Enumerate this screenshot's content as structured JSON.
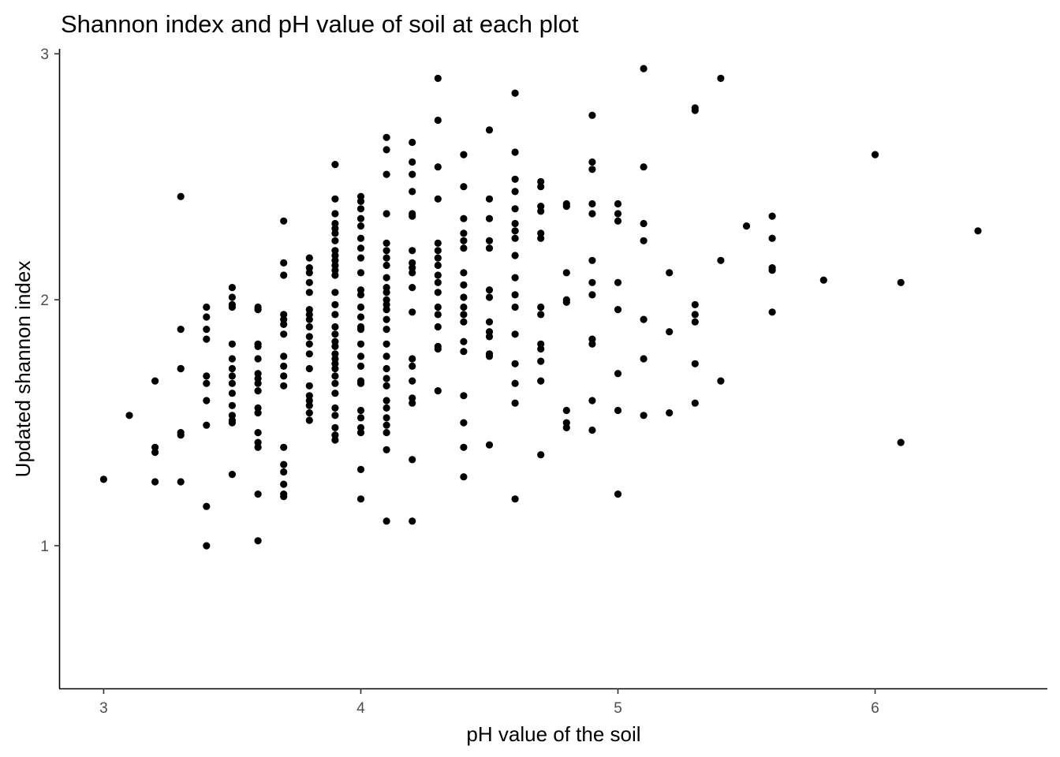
{
  "chart_data": {
    "type": "scatter",
    "title": "Shannon index and pH value of soil at each plot",
    "xlabel": "pH value of the soil",
    "ylabel": "Updated shannon index",
    "xlim": [
      2.83,
      6.67
    ],
    "ylim": [
      0.42,
      3.02
    ],
    "xticks": [
      3,
      4,
      5,
      6
    ],
    "yticks": [
      1,
      2,
      3
    ],
    "grid": false,
    "legend": "none",
    "point_color": "#000000",
    "points": [
      [
        3.0,
        1.27
      ],
      [
        3.1,
        1.53
      ],
      [
        3.2,
        1.67
      ],
      [
        3.2,
        1.4
      ],
      [
        3.2,
        1.38
      ],
      [
        3.2,
        1.26
      ],
      [
        3.3,
        2.42
      ],
      [
        3.3,
        1.88
      ],
      [
        3.3,
        1.72
      ],
      [
        3.3,
        1.72
      ],
      [
        3.3,
        1.46
      ],
      [
        3.3,
        1.45
      ],
      [
        3.3,
        1.26
      ],
      [
        3.4,
        1.97
      ],
      [
        3.4,
        1.93
      ],
      [
        3.4,
        1.88
      ],
      [
        3.4,
        1.84
      ],
      [
        3.4,
        1.69
      ],
      [
        3.4,
        1.66
      ],
      [
        3.4,
        1.59
      ],
      [
        3.4,
        1.49
      ],
      [
        3.4,
        1.16
      ],
      [
        3.4,
        1.0
      ],
      [
        3.5,
        2.05
      ],
      [
        3.5,
        2.01
      ],
      [
        3.5,
        1.98
      ],
      [
        3.5,
        1.97
      ],
      [
        3.5,
        1.82
      ],
      [
        3.5,
        1.76
      ],
      [
        3.5,
        1.72
      ],
      [
        3.5,
        1.69
      ],
      [
        3.5,
        1.66
      ],
      [
        3.5,
        1.62
      ],
      [
        3.5,
        1.57
      ],
      [
        3.5,
        1.53
      ],
      [
        3.5,
        1.51
      ],
      [
        3.5,
        1.5
      ],
      [
        3.5,
        1.29
      ],
      [
        3.6,
        1.97
      ],
      [
        3.6,
        1.96
      ],
      [
        3.6,
        1.82
      ],
      [
        3.6,
        1.81
      ],
      [
        3.6,
        1.76
      ],
      [
        3.6,
        1.7
      ],
      [
        3.6,
        1.68
      ],
      [
        3.6,
        1.66
      ],
      [
        3.6,
        1.63
      ],
      [
        3.6,
        1.56
      ],
      [
        3.6,
        1.54
      ],
      [
        3.6,
        1.46
      ],
      [
        3.6,
        1.42
      ],
      [
        3.6,
        1.4
      ],
      [
        3.6,
        1.21
      ],
      [
        3.6,
        1.02
      ],
      [
        3.7,
        2.32
      ],
      [
        3.7,
        2.15
      ],
      [
        3.7,
        2.1
      ],
      [
        3.7,
        1.94
      ],
      [
        3.7,
        1.92
      ],
      [
        3.7,
        1.9
      ],
      [
        3.7,
        1.86
      ],
      [
        3.7,
        1.77
      ],
      [
        3.7,
        1.73
      ],
      [
        3.7,
        1.69
      ],
      [
        3.7,
        1.65
      ],
      [
        3.7,
        1.4
      ],
      [
        3.7,
        1.33
      ],
      [
        3.7,
        1.3
      ],
      [
        3.7,
        1.25
      ],
      [
        3.7,
        1.21
      ],
      [
        3.7,
        1.2
      ],
      [
        3.8,
        2.17
      ],
      [
        3.8,
        2.13
      ],
      [
        3.8,
        2.11
      ],
      [
        3.8,
        2.07
      ],
      [
        3.8,
        2.03
      ],
      [
        3.8,
        1.96
      ],
      [
        3.8,
        1.94
      ],
      [
        3.8,
        1.92
      ],
      [
        3.8,
        1.89
      ],
      [
        3.8,
        1.85
      ],
      [
        3.8,
        1.82
      ],
      [
        3.8,
        1.78
      ],
      [
        3.8,
        1.72
      ],
      [
        3.8,
        1.65
      ],
      [
        3.8,
        1.61
      ],
      [
        3.8,
        1.59
      ],
      [
        3.8,
        1.57
      ],
      [
        3.8,
        1.54
      ],
      [
        3.8,
        1.51
      ],
      [
        3.9,
        2.55
      ],
      [
        3.9,
        2.41
      ],
      [
        3.9,
        2.35
      ],
      [
        3.9,
        2.31
      ],
      [
        3.9,
        2.29
      ],
      [
        3.9,
        2.27
      ],
      [
        3.9,
        2.24
      ],
      [
        3.9,
        2.2
      ],
      [
        3.9,
        2.18
      ],
      [
        3.9,
        2.16
      ],
      [
        3.9,
        2.14
      ],
      [
        3.9,
        2.12
      ],
      [
        3.9,
        2.1
      ],
      [
        3.9,
        2.03
      ],
      [
        3.9,
        1.98
      ],
      [
        3.9,
        1.94
      ],
      [
        3.9,
        1.89
      ],
      [
        3.9,
        1.86
      ],
      [
        3.9,
        1.83
      ],
      [
        3.9,
        1.81
      ],
      [
        3.9,
        1.78
      ],
      [
        3.9,
        1.76
      ],
      [
        3.9,
        1.74
      ],
      [
        3.9,
        1.72
      ],
      [
        3.9,
        1.69
      ],
      [
        3.9,
        1.66
      ],
      [
        3.9,
        1.62
      ],
      [
        3.9,
        1.56
      ],
      [
        3.9,
        1.53
      ],
      [
        3.9,
        1.48
      ],
      [
        3.9,
        1.45
      ],
      [
        3.9,
        1.43
      ],
      [
        4.0,
        2.42
      ],
      [
        4.0,
        2.4
      ],
      [
        4.0,
        2.37
      ],
      [
        4.0,
        2.33
      ],
      [
        4.0,
        2.3
      ],
      [
        4.0,
        2.25
      ],
      [
        4.0,
        2.21
      ],
      [
        4.0,
        2.17
      ],
      [
        4.0,
        2.11
      ],
      [
        4.0,
        2.04
      ],
      [
        4.0,
        2.02
      ],
      [
        4.0,
        1.97
      ],
      [
        4.0,
        1.93
      ],
      [
        4.0,
        1.89
      ],
      [
        4.0,
        1.88
      ],
      [
        4.0,
        1.82
      ],
      [
        4.0,
        1.77
      ],
      [
        4.0,
        1.73
      ],
      [
        4.0,
        1.67
      ],
      [
        4.0,
        1.66
      ],
      [
        4.0,
        1.55
      ],
      [
        4.0,
        1.52
      ],
      [
        4.0,
        1.48
      ],
      [
        4.0,
        1.46
      ],
      [
        4.0,
        1.31
      ],
      [
        4.0,
        1.19
      ],
      [
        4.1,
        2.66
      ],
      [
        4.1,
        2.61
      ],
      [
        4.1,
        2.51
      ],
      [
        4.1,
        2.35
      ],
      [
        4.1,
        2.23
      ],
      [
        4.1,
        2.2
      ],
      [
        4.1,
        2.17
      ],
      [
        4.1,
        2.14
      ],
      [
        4.1,
        2.09
      ],
      [
        4.1,
        2.05
      ],
      [
        4.1,
        2.03
      ],
      [
        4.1,
        2.0
      ],
      [
        4.1,
        1.98
      ],
      [
        4.1,
        1.96
      ],
      [
        4.1,
        1.92
      ],
      [
        4.1,
        1.88
      ],
      [
        4.1,
        1.82
      ],
      [
        4.1,
        1.77
      ],
      [
        4.1,
        1.72
      ],
      [
        4.1,
        1.68
      ],
      [
        4.1,
        1.65
      ],
      [
        4.1,
        1.59
      ],
      [
        4.1,
        1.56
      ],
      [
        4.1,
        1.52
      ],
      [
        4.1,
        1.49
      ],
      [
        4.1,
        1.46
      ],
      [
        4.1,
        1.39
      ],
      [
        4.1,
        1.1
      ],
      [
        4.2,
        2.64
      ],
      [
        4.2,
        2.56
      ],
      [
        4.2,
        2.51
      ],
      [
        4.2,
        2.44
      ],
      [
        4.2,
        2.35
      ],
      [
        4.2,
        2.34
      ],
      [
        4.2,
        2.2
      ],
      [
        4.2,
        2.15
      ],
      [
        4.2,
        2.13
      ],
      [
        4.2,
        2.11
      ],
      [
        4.2,
        2.05
      ],
      [
        4.2,
        1.95
      ],
      [
        4.2,
        1.76
      ],
      [
        4.2,
        1.73
      ],
      [
        4.2,
        1.67
      ],
      [
        4.2,
        1.6
      ],
      [
        4.2,
        1.58
      ],
      [
        4.2,
        1.35
      ],
      [
        4.2,
        1.1
      ],
      [
        4.3,
        2.9
      ],
      [
        4.3,
        2.73
      ],
      [
        4.3,
        2.54
      ],
      [
        4.3,
        2.41
      ],
      [
        4.3,
        2.23
      ],
      [
        4.3,
        2.2
      ],
      [
        4.3,
        2.17
      ],
      [
        4.3,
        2.14
      ],
      [
        4.3,
        2.1
      ],
      [
        4.3,
        2.07
      ],
      [
        4.3,
        2.03
      ],
      [
        4.3,
        1.97
      ],
      [
        4.3,
        1.94
      ],
      [
        4.3,
        1.89
      ],
      [
        4.3,
        1.81
      ],
      [
        4.3,
        1.8
      ],
      [
        4.3,
        1.63
      ],
      [
        4.4,
        2.59
      ],
      [
        4.4,
        2.46
      ],
      [
        4.4,
        2.33
      ],
      [
        4.4,
        2.27
      ],
      [
        4.4,
        2.24
      ],
      [
        4.4,
        2.21
      ],
      [
        4.4,
        2.11
      ],
      [
        4.4,
        2.06
      ],
      [
        4.4,
        2.01
      ],
      [
        4.4,
        1.97
      ],
      [
        4.4,
        1.94
      ],
      [
        4.4,
        1.91
      ],
      [
        4.4,
        1.83
      ],
      [
        4.4,
        1.79
      ],
      [
        4.4,
        1.61
      ],
      [
        4.4,
        1.5
      ],
      [
        4.4,
        1.4
      ],
      [
        4.4,
        1.28
      ],
      [
        4.5,
        2.69
      ],
      [
        4.5,
        2.41
      ],
      [
        4.5,
        2.33
      ],
      [
        4.5,
        2.24
      ],
      [
        4.5,
        2.21
      ],
      [
        4.5,
        2.04
      ],
      [
        4.5,
        2.01
      ],
      [
        4.5,
        1.91
      ],
      [
        4.5,
        1.87
      ],
      [
        4.5,
        1.85
      ],
      [
        4.5,
        1.78
      ],
      [
        4.5,
        1.77
      ],
      [
        4.5,
        1.41
      ],
      [
        4.6,
        2.84
      ],
      [
        4.6,
        2.6
      ],
      [
        4.6,
        2.49
      ],
      [
        4.6,
        2.44
      ],
      [
        4.6,
        2.37
      ],
      [
        4.6,
        2.31
      ],
      [
        4.6,
        2.28
      ],
      [
        4.6,
        2.25
      ],
      [
        4.6,
        2.18
      ],
      [
        4.6,
        2.09
      ],
      [
        4.6,
        2.02
      ],
      [
        4.6,
        1.97
      ],
      [
        4.6,
        1.86
      ],
      [
        4.6,
        1.74
      ],
      [
        4.6,
        1.66
      ],
      [
        4.6,
        1.58
      ],
      [
        4.6,
        1.19
      ],
      [
        4.7,
        2.48
      ],
      [
        4.7,
        2.46
      ],
      [
        4.7,
        2.38
      ],
      [
        4.7,
        2.36
      ],
      [
        4.7,
        2.27
      ],
      [
        4.7,
        2.25
      ],
      [
        4.7,
        1.97
      ],
      [
        4.7,
        1.94
      ],
      [
        4.7,
        1.82
      ],
      [
        4.7,
        1.8
      ],
      [
        4.7,
        1.75
      ],
      [
        4.7,
        1.67
      ],
      [
        4.7,
        1.37
      ],
      [
        4.8,
        2.39
      ],
      [
        4.8,
        2.38
      ],
      [
        4.8,
        2.11
      ],
      [
        4.8,
        2.0
      ],
      [
        4.8,
        1.99
      ],
      [
        4.8,
        1.55
      ],
      [
        4.8,
        1.5
      ],
      [
        4.8,
        1.48
      ],
      [
        4.9,
        2.75
      ],
      [
        4.9,
        2.56
      ],
      [
        4.9,
        2.53
      ],
      [
        4.9,
        2.39
      ],
      [
        4.9,
        2.35
      ],
      [
        4.9,
        2.16
      ],
      [
        4.9,
        2.07
      ],
      [
        4.9,
        2.02
      ],
      [
        4.9,
        1.84
      ],
      [
        4.9,
        1.82
      ],
      [
        4.9,
        1.59
      ],
      [
        4.9,
        1.47
      ],
      [
        5.0,
        2.39
      ],
      [
        5.0,
        2.35
      ],
      [
        5.0,
        2.32
      ],
      [
        5.0,
        2.07
      ],
      [
        5.0,
        1.96
      ],
      [
        5.0,
        1.7
      ],
      [
        5.0,
        1.55
      ],
      [
        5.0,
        1.21
      ],
      [
        5.1,
        2.94
      ],
      [
        5.1,
        2.54
      ],
      [
        5.1,
        2.31
      ],
      [
        5.1,
        2.24
      ],
      [
        5.1,
        1.92
      ],
      [
        5.1,
        1.76
      ],
      [
        5.1,
        1.53
      ],
      [
        5.2,
        2.11
      ],
      [
        5.2,
        1.87
      ],
      [
        5.2,
        1.54
      ],
      [
        5.3,
        2.78
      ],
      [
        5.3,
        2.77
      ],
      [
        5.3,
        1.98
      ],
      [
        5.3,
        1.94
      ],
      [
        5.3,
        1.91
      ],
      [
        5.3,
        1.74
      ],
      [
        5.3,
        1.58
      ],
      [
        5.4,
        2.9
      ],
      [
        5.4,
        2.16
      ],
      [
        5.4,
        1.67
      ],
      [
        5.5,
        2.3
      ],
      [
        5.6,
        2.34
      ],
      [
        5.6,
        2.25
      ],
      [
        5.6,
        2.13
      ],
      [
        5.6,
        2.12
      ],
      [
        5.6,
        1.95
      ],
      [
        5.8,
        2.08
      ],
      [
        6.0,
        2.59
      ],
      [
        6.1,
        2.07
      ],
      [
        6.1,
        1.42
      ],
      [
        6.4,
        2.28
      ]
    ]
  }
}
